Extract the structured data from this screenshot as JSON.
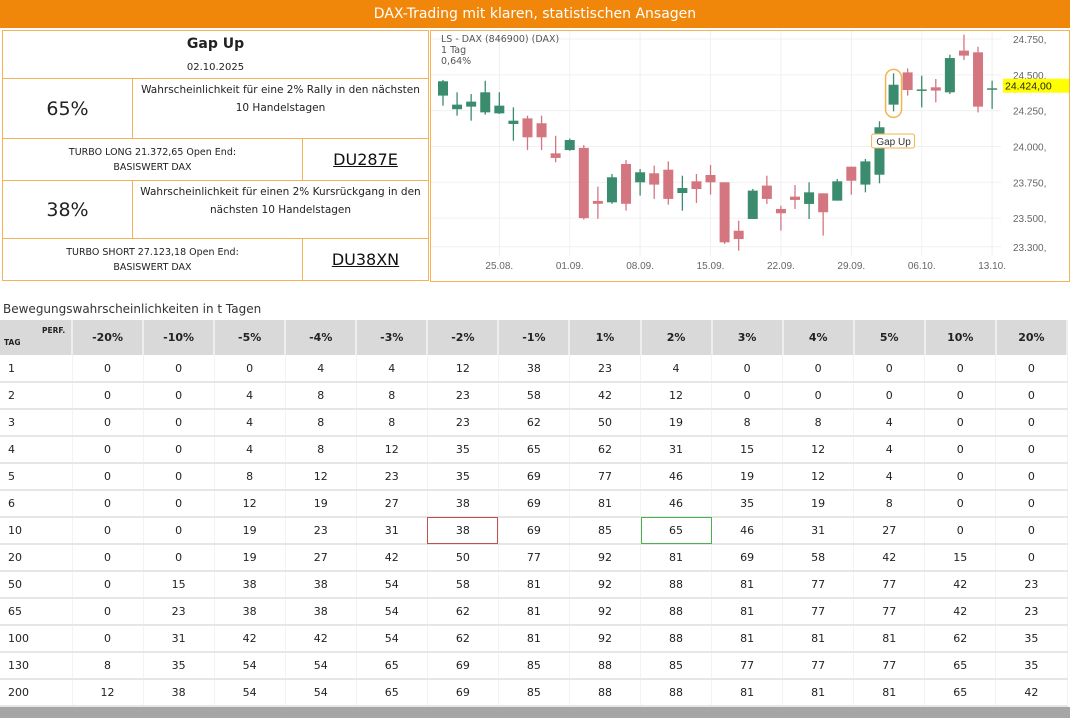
{
  "header": {
    "title": "DAX-Trading mit klaren, statistischen Ansagen"
  },
  "signal": {
    "title": "Gap Up",
    "date": "02.10.2025",
    "rally": {
      "percent": "65%",
      "text": "Wahrscheinlichkeit für eine 2% Rally in den nächsten 10 Handelstagen"
    },
    "long": {
      "text1": "TURBO LONG 21.372,65 Open End:",
      "text2": "BASISWERT DAX",
      "code": "DU287E"
    },
    "drop": {
      "percent": "38%",
      "text": "Wahrscheinlichkeit für einen 2% Kursrückgang in den nächsten 10 Handelstagen"
    },
    "short": {
      "text1": "TURBO SHORT 27.123,18 Open End:",
      "text2": "BASISWERT DAX",
      "code": "DU38XN"
    }
  },
  "chart_data": {
    "type": "candlestick",
    "title": "LS - DAX (846900) (DAX)",
    "interval": "1 Tag",
    "change": "0,64%",
    "last_price": "24.424,00",
    "annotation": {
      "label": "Gap Up",
      "candle_index": 32
    },
    "colors": {
      "up": "#3b8c6e",
      "down": "#d47680"
    },
    "ylim": [
      23250,
      24800
    ],
    "y_ticks": [
      {
        "v": 24750,
        "l": "24.750,"
      },
      {
        "v": 24500,
        "l": "24.500,"
      },
      {
        "v": 24250,
        "l": "24.250,"
      },
      {
        "v": 24000,
        "l": "24.000,"
      },
      {
        "v": 23750,
        "l": "23.750,"
      },
      {
        "v": 23500,
        "l": "23.500,"
      },
      {
        "v": 23300,
        "l": "23.300,"
      }
    ],
    "x_ticks": [
      {
        "i": 4,
        "l": "25.08."
      },
      {
        "i": 9,
        "l": "01.09."
      },
      {
        "i": 14,
        "l": "08.09."
      },
      {
        "i": 19,
        "l": "15.09."
      },
      {
        "i": 24,
        "l": "22.09."
      },
      {
        "i": 29,
        "l": "29.09."
      },
      {
        "i": 34,
        "l": "06.10."
      },
      {
        "i": 39,
        "l": "13.10."
      }
    ],
    "ohlc": [
      [
        24355,
        24464,
        24285,
        24455
      ],
      [
        24260,
        24378,
        24215,
        24292
      ],
      [
        24278,
        24366,
        24180,
        24313
      ],
      [
        24238,
        24459,
        24222,
        24378
      ],
      [
        24231,
        24378,
        24227,
        24285
      ],
      [
        24157,
        24273,
        24040,
        24180
      ],
      [
        24196,
        24215,
        23975,
        24064
      ],
      [
        24162,
        24215,
        23975,
        24064
      ],
      [
        23952,
        24075,
        23890,
        23920
      ],
      [
        23975,
        24055,
        23970,
        24045
      ],
      [
        23990,
        24010,
        23490,
        23500
      ],
      [
        23620,
        23720,
        23495,
        23600
      ],
      [
        23610,
        23808,
        23600,
        23785
      ],
      [
        23878,
        23905,
        23552,
        23600
      ],
      [
        23750,
        23843,
        23657,
        23820
      ],
      [
        23813,
        23866,
        23634,
        23734
      ],
      [
        23838,
        23896,
        23594,
        23634
      ],
      [
        23675,
        23796,
        23552,
        23710
      ],
      [
        23757,
        23808,
        23606,
        23703
      ],
      [
        23801,
        23871,
        23664,
        23750
      ],
      [
        23750,
        23750,
        23320,
        23331
      ],
      [
        23412,
        23482,
        23273,
        23354
      ],
      [
        23494,
        23703,
        23494,
        23692
      ],
      [
        23727,
        23796,
        23599,
        23634
      ],
      [
        23564,
        23587,
        23413,
        23534
      ],
      [
        23650,
        23731,
        23564,
        23627
      ],
      [
        23599,
        23750,
        23494,
        23680
      ],
      [
        23673,
        23673,
        23378,
        23541
      ],
      [
        23622,
        23773,
        23622,
        23757
      ],
      [
        23859,
        23859,
        23664,
        23761
      ],
      [
        23734,
        23913,
        23680,
        23896
      ],
      [
        23803,
        24176,
        23743,
        24134
      ],
      [
        24292,
        24510,
        24245,
        24431
      ],
      [
        24517,
        24545,
        24355,
        24394
      ],
      [
        24398,
        24494,
        24273,
        24398
      ],
      [
        24413,
        24471,
        24308,
        24390
      ],
      [
        24378,
        24641,
        24366,
        24617
      ],
      [
        24669,
        24780,
        24603,
        24634
      ],
      [
        24657,
        24696,
        24238,
        24278
      ],
      [
        24406,
        24459,
        24262,
        24406
      ]
    ]
  },
  "table": {
    "title": "Bewegungswahrscheinlichkeiten in t Tagen",
    "corner_tag": "TAG",
    "corner_perf": "PERF.",
    "columns": [
      "-20%",
      "-10%",
      "-5%",
      "-4%",
      "-3%",
      "-2%",
      "-1%",
      "1%",
      "2%",
      "3%",
      "4%",
      "5%",
      "10%",
      "20%"
    ],
    "rows": [
      {
        "tag": "1",
        "values": [
          0,
          0,
          0,
          4,
          4,
          12,
          38,
          23,
          4,
          0,
          0,
          0,
          0,
          0
        ]
      },
      {
        "tag": "2",
        "values": [
          0,
          0,
          4,
          8,
          8,
          23,
          58,
          42,
          12,
          0,
          0,
          0,
          0,
          0
        ]
      },
      {
        "tag": "3",
        "values": [
          0,
          0,
          4,
          8,
          8,
          23,
          62,
          50,
          19,
          8,
          8,
          4,
          0,
          0
        ]
      },
      {
        "tag": "4",
        "values": [
          0,
          0,
          4,
          8,
          12,
          35,
          65,
          62,
          31,
          15,
          12,
          4,
          0,
          0
        ]
      },
      {
        "tag": "5",
        "values": [
          0,
          0,
          8,
          12,
          23,
          35,
          69,
          77,
          46,
          19,
          12,
          4,
          0,
          0
        ]
      },
      {
        "tag": "6",
        "values": [
          0,
          0,
          12,
          19,
          27,
          38,
          69,
          81,
          46,
          35,
          19,
          8,
          0,
          0
        ]
      },
      {
        "tag": "10",
        "values": [
          0,
          0,
          19,
          23,
          31,
          38,
          69,
          85,
          65,
          46,
          31,
          27,
          0,
          0
        ],
        "highlight": {
          "5": "red",
          "8": "green"
        }
      },
      {
        "tag": "20",
        "values": [
          0,
          0,
          19,
          27,
          42,
          50,
          77,
          92,
          81,
          69,
          58,
          42,
          15,
          0
        ]
      },
      {
        "tag": "50",
        "values": [
          0,
          15,
          38,
          38,
          54,
          58,
          81,
          92,
          88,
          81,
          77,
          77,
          42,
          23
        ]
      },
      {
        "tag": "65",
        "values": [
          0,
          23,
          38,
          38,
          54,
          62,
          81,
          92,
          88,
          81,
          77,
          77,
          42,
          23
        ]
      },
      {
        "tag": "100",
        "values": [
          0,
          31,
          42,
          42,
          54,
          62,
          81,
          92,
          88,
          81,
          81,
          81,
          62,
          35
        ]
      },
      {
        "tag": "130",
        "values": [
          8,
          35,
          54,
          54,
          65,
          69,
          85,
          88,
          85,
          77,
          77,
          77,
          65,
          35
        ]
      },
      {
        "tag": "200",
        "values": [
          12,
          38,
          54,
          54,
          65,
          69,
          85,
          88,
          88,
          81,
          81,
          81,
          65,
          42
        ]
      }
    ]
  }
}
